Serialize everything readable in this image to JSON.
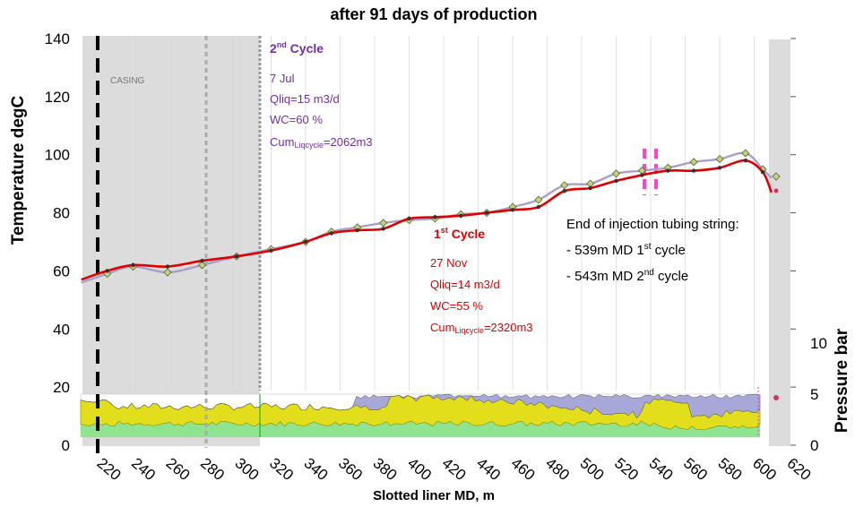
{
  "chart_data": {
    "type": "line",
    "title": "after 91 days of production",
    "xlabel": "Slotted liner MD, m",
    "ylabel": "Temperature degC",
    "y2label": "Pressure bar",
    "xlim": [
      210,
      615
    ],
    "ylim": [
      0,
      140
    ],
    "x_ticks": [
      220,
      240,
      260,
      280,
      300,
      320,
      340,
      360,
      380,
      400,
      420,
      440,
      460,
      480,
      500,
      520,
      540,
      560,
      580,
      600,
      620
    ],
    "y_ticks": [
      0,
      20,
      40,
      60,
      80,
      100,
      120,
      140
    ],
    "y2_ticks": [
      0,
      5,
      10
    ],
    "grid": true,
    "casing_label": "CASING",
    "series": [
      {
        "name": "1st Cycle",
        "color": "#e00000",
        "x": [
          210,
          225,
          240,
          260,
          280,
          300,
          320,
          340,
          355,
          370,
          385,
          400,
          415,
          430,
          445,
          460,
          475,
          490,
          505,
          520,
          535,
          550,
          565,
          580,
          595,
          605,
          610
        ],
        "y": [
          57,
          60,
          62,
          61.5,
          63.5,
          65,
          67,
          70,
          73,
          74,
          74.5,
          78,
          78.5,
          79,
          80,
          81,
          82,
          87.5,
          88.5,
          91,
          93,
          94.5,
          94.5,
          95.5,
          98,
          94,
          87
        ]
      },
      {
        "name": "2nd Cycle",
        "color": "#a8a0c8",
        "x": [
          210,
          225,
          240,
          260,
          280,
          300,
          320,
          340,
          355,
          370,
          385,
          400,
          415,
          430,
          445,
          460,
          475,
          490,
          505,
          520,
          535,
          550,
          565,
          580,
          595,
          605,
          610
        ],
        "y": [
          56,
          59,
          61.5,
          59.5,
          62,
          65,
          67.5,
          70,
          73.5,
          75,
          76.5,
          77.5,
          78,
          79.5,
          80,
          82,
          84.5,
          89.5,
          90,
          93.5,
          94.5,
          95.5,
          97.5,
          98.5,
          100.5,
          95,
          92
        ]
      }
    ],
    "annotations": {
      "cycle2": {
        "title_main": "2",
        "title_sup": "nd",
        "title_rest": " Cycle",
        "date": "7 Jul",
        "qliq": "Qliq=15 m3/d",
        "wc": "WC=60 %",
        "cum_main": "Cum",
        "cum_sub": "Liqcycle",
        "cum_rest": "=2062m3"
      },
      "cycle1": {
        "title_main": "1",
        "title_sup": "st",
        "title_rest": " Cycle",
        "date": "27 Nov",
        "qliq": "Qliq=14 m3/d",
        "wc": "WC=55 %",
        "cum_main": "Cum",
        "cum_sub": "Liqcycle",
        "cum_rest": "=2320m3"
      },
      "tubing": {
        "heading": "End of injection tubing string:",
        "line1_pre": "- 539m MD 1",
        "line1_sup": "st",
        "line1_post": " cycle",
        "line2_pre": "- 543m MD 2",
        "line2_sup": "nd",
        "line2_post": " cycle"
      }
    }
  }
}
